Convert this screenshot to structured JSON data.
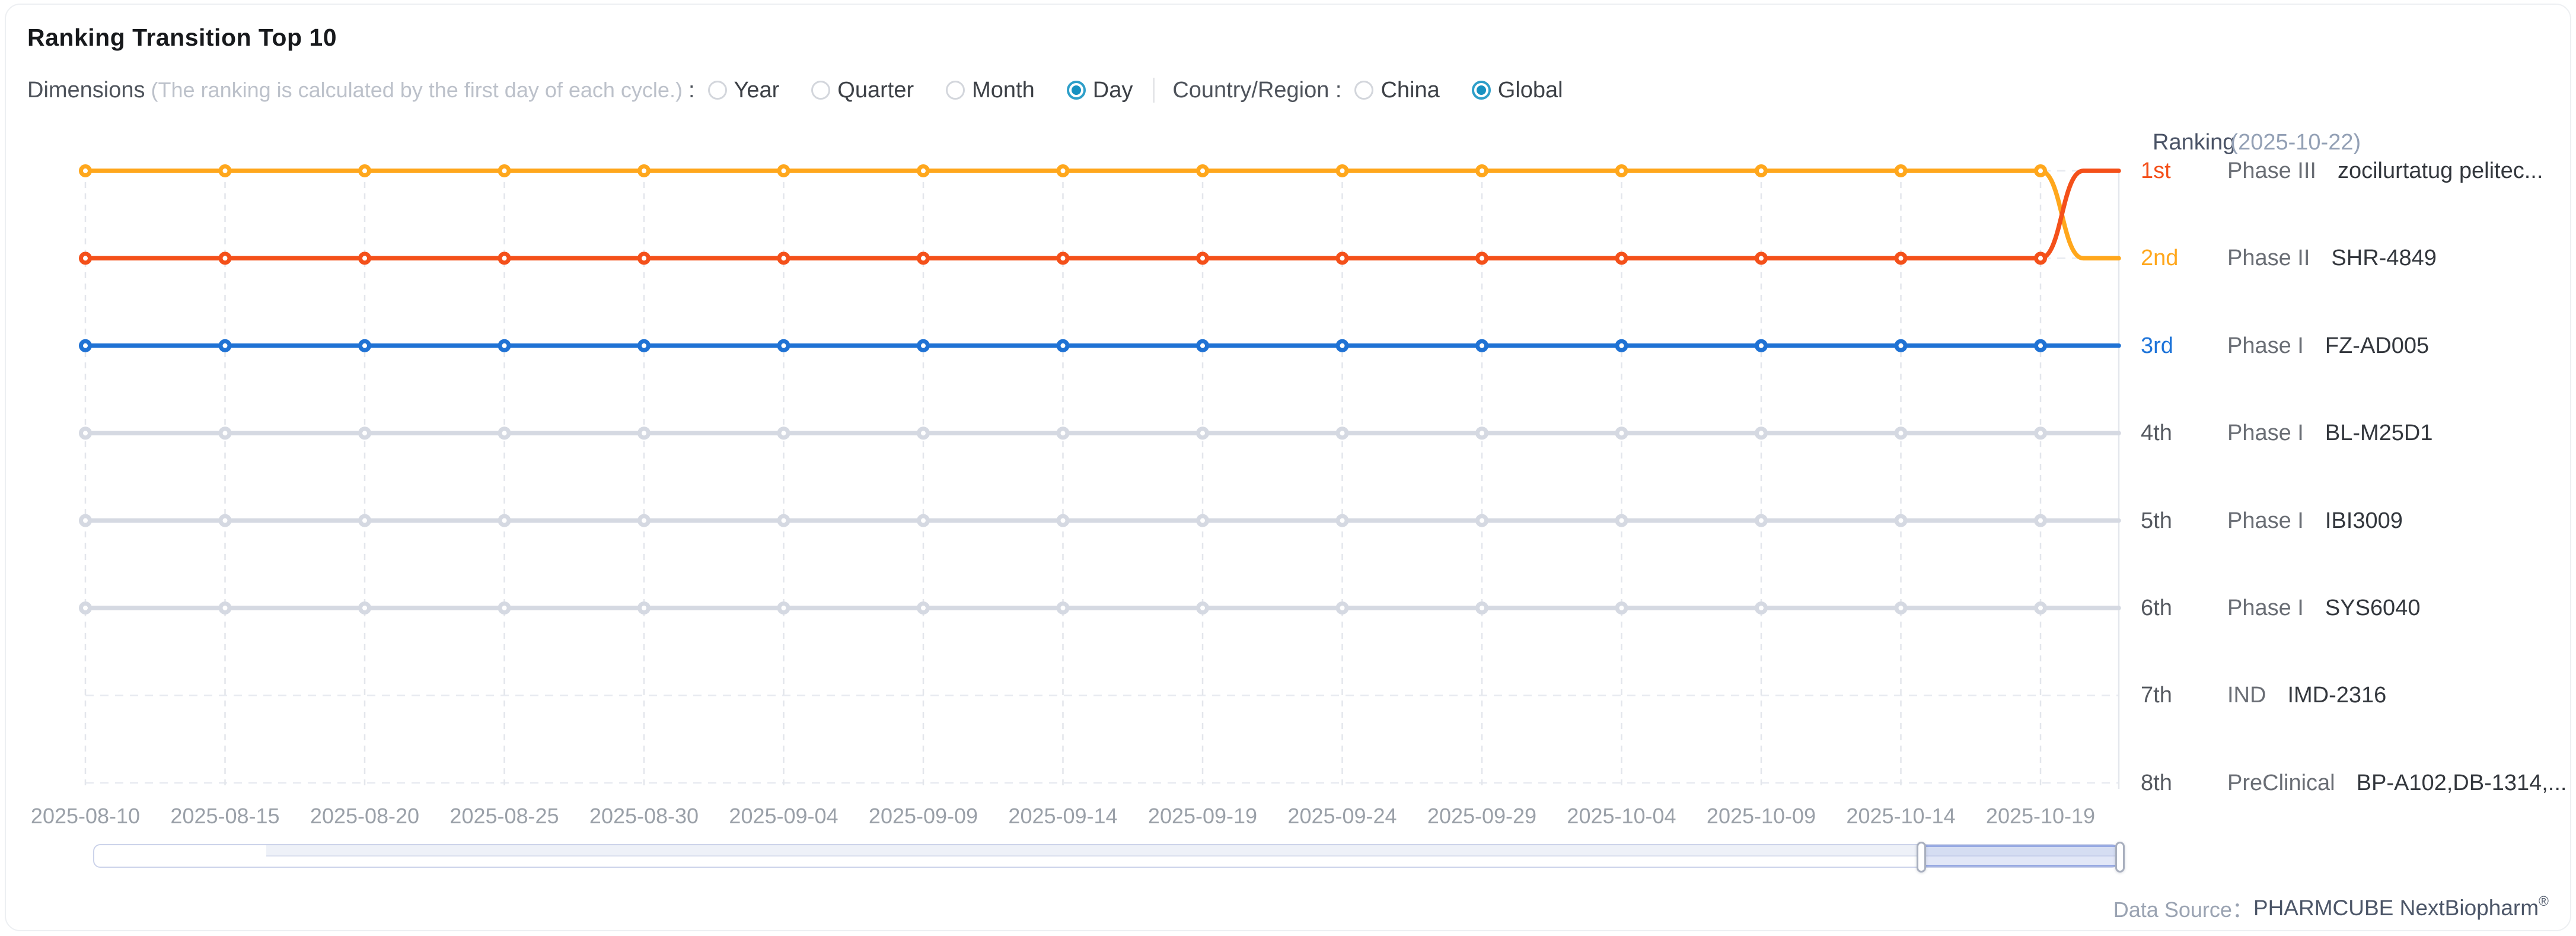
{
  "header": {
    "title": "Ranking Transition Top 10"
  },
  "filters": {
    "dimensions_label": "Dimensions",
    "dimensions_note": "(The ranking is calculated by the first day of each cycle.)",
    "colon": ":",
    "dimension_options": [
      {
        "label": "Year",
        "selected": false
      },
      {
        "label": "Quarter",
        "selected": false
      },
      {
        "label": "Month",
        "selected": false
      },
      {
        "label": "Day",
        "selected": true
      }
    ],
    "region_label": "Country/Region :",
    "region_options": [
      {
        "label": "China",
        "selected": false
      },
      {
        "label": "Global",
        "selected": true
      }
    ]
  },
  "ranking_panel": {
    "title": "Ranking",
    "date": "(2025-10-22)",
    "rows": [
      {
        "rank": "1st",
        "phase": "Phase III",
        "name": "zocilurtatug pelitec...",
        "color": "#f4501a"
      },
      {
        "rank": "2nd",
        "phase": "Phase II",
        "name": "SHR-4849",
        "color": "#ffa71c"
      },
      {
        "rank": "3rd",
        "phase": "Phase I",
        "name": "FZ-AD005",
        "color": "#1e74d9"
      },
      {
        "rank": "4th",
        "phase": "Phase I",
        "name": "BL-M25D1",
        "color": "#54585f"
      },
      {
        "rank": "5th",
        "phase": "Phase I",
        "name": "IBI3009",
        "color": "#54585f"
      },
      {
        "rank": "6th",
        "phase": "Phase I",
        "name": "SYS6040",
        "color": "#54585f"
      },
      {
        "rank": "7th",
        "phase": "IND",
        "name": "IMD-2316",
        "color": "#54585f"
      },
      {
        "rank": "8th",
        "phase": "PreClinical",
        "name": "BP-A102,DB-1314,...",
        "color": "#54585f"
      }
    ]
  },
  "footer": {
    "label": "Data Source：",
    "source": "PHARMCUBE NextBiopharm",
    "reg": "®"
  },
  "chart_data": {
    "type": "line",
    "title": "Ranking Transition Top 10",
    "x_tick_labels": [
      "2025-08-10",
      "2025-08-15",
      "2025-08-20",
      "2025-08-25",
      "2025-08-30",
      "2025-09-04",
      "2025-09-09",
      "2025-09-14",
      "2025-09-19",
      "2025-09-24",
      "2025-09-29",
      "2025-10-04",
      "2025-10-09",
      "2025-10-14",
      "2025-10-19"
    ],
    "x_end_date": "2025-10-22",
    "y_axis": {
      "label": "ranking",
      "inverted": true,
      "visible_rank_range": [
        1,
        8
      ]
    },
    "series": [
      {
        "name": "zocilurtatug pelitec...",
        "color": "#f4501a",
        "values": [
          2,
          2,
          2,
          2,
          2,
          2,
          2,
          2,
          2,
          2,
          2,
          2,
          2,
          2,
          2,
          1
        ]
      },
      {
        "name": "SHR-4849",
        "color": "#ffa71c",
        "values": [
          1,
          1,
          1,
          1,
          1,
          1,
          1,
          1,
          1,
          1,
          1,
          1,
          1,
          1,
          1,
          2
        ]
      },
      {
        "name": "FZ-AD005",
        "color": "#1f72d4",
        "values": [
          3,
          3,
          3,
          3,
          3,
          3,
          3,
          3,
          3,
          3,
          3,
          3,
          3,
          3,
          3,
          3
        ]
      },
      {
        "name": "BL-M25D1",
        "color": "#d5d9e2",
        "values": [
          4,
          4,
          4,
          4,
          4,
          4,
          4,
          4,
          4,
          4,
          4,
          4,
          4,
          4,
          4,
          4
        ]
      },
      {
        "name": "IBI3009",
        "color": "#d5d9e2",
        "values": [
          5,
          5,
          5,
          5,
          5,
          5,
          5,
          5,
          5,
          5,
          5,
          5,
          5,
          5,
          5,
          5
        ]
      },
      {
        "name": "SYS6040",
        "color": "#d5d9e2",
        "values": [
          6,
          6,
          6,
          6,
          6,
          6,
          6,
          6,
          6,
          6,
          6,
          6,
          6,
          6,
          6,
          6
        ]
      }
    ],
    "grid": {
      "horizontal_gridline_ranks": [
        1,
        2,
        3,
        4,
        5,
        6,
        7,
        8
      ],
      "dashed": true,
      "legend_position": "right"
    },
    "data_zoom": {
      "preview_step_pct": 8.6,
      "selected_pct": [
        90.2,
        100
      ]
    }
  }
}
